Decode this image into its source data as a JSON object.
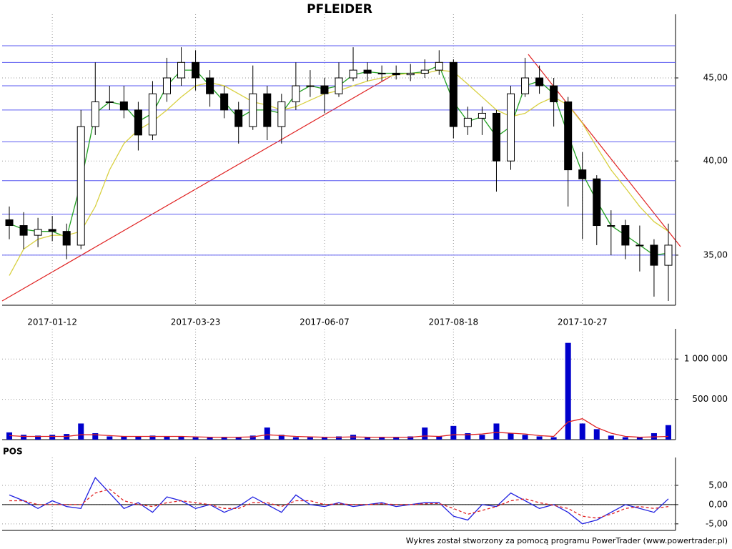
{
  "chart_data": [
    {
      "type": "candlestick",
      "title": "PFLEIDER",
      "categories": [
        null,
        null,
        null,
        "2017-01-12",
        null,
        null,
        null,
        null,
        null,
        null,
        null,
        null,
        null,
        "2017-03-23",
        null,
        null,
        null,
        null,
        null,
        null,
        null,
        null,
        "2017-06-07",
        null,
        null,
        null,
        null,
        null,
        null,
        null,
        null,
        "2017-08-18",
        null,
        null,
        null,
        null,
        null,
        null,
        null,
        null,
        "2017-10-27",
        null,
        null,
        null,
        null,
        null,
        null
      ],
      "open": [
        36.8,
        36.5,
        36,
        36.3,
        36.2,
        35.5,
        42,
        43.5,
        43.5,
        43,
        41.5,
        44,
        45,
        46,
        45,
        44,
        43,
        42,
        44,
        42,
        43.5,
        44.5,
        44.5,
        44,
        45,
        45.5,
        45.3,
        45.3,
        45.2,
        45.3,
        45.5,
        46,
        42,
        42.5,
        42.8,
        40,
        44,
        45,
        44.5,
        43.5,
        39.5,
        39,
        36.5,
        36.5,
        35.5,
        35.5,
        34.5
      ],
      "high": [
        37.5,
        37.2,
        36.9,
        37,
        36.6,
        43,
        46,
        44.5,
        44.5,
        43.5,
        44.8,
        46.3,
        47,
        46.8,
        45.5,
        44.5,
        43.5,
        45.8,
        44.5,
        44,
        46,
        45.5,
        45,
        46,
        47,
        46,
        45.8,
        45.8,
        45.9,
        46.2,
        46.8,
        46.2,
        43.2,
        43.2,
        43,
        44.5,
        46.3,
        45.8,
        45,
        43.8,
        40.5,
        39.2,
        37.3,
        36.8,
        36.5,
        35.8,
        36.6
      ],
      "low": [
        35.8,
        35.3,
        35.4,
        35.7,
        34.8,
        35.3,
        41.5,
        43,
        42.5,
        40.6,
        41.2,
        43.5,
        44.5,
        44.2,
        43.2,
        42.5,
        41,
        41.8,
        41.2,
        41,
        43,
        43.8,
        42.8,
        43.8,
        44.8,
        44.8,
        44.8,
        44.9,
        44.8,
        45,
        45.2,
        41.3,
        41.5,
        41.5,
        38.3,
        39.5,
        43.8,
        44,
        42,
        37.5,
        35.8,
        35.5,
        35,
        34.8,
        34.2,
        33,
        32.8
      ],
      "close": [
        36.5,
        36,
        36.3,
        36.2,
        35.5,
        42,
        43.5,
        43.5,
        43,
        41.5,
        44,
        45,
        46,
        45,
        44,
        43,
        42,
        44,
        42,
        43.5,
        44.5,
        44.5,
        44,
        45,
        45.5,
        45.3,
        45.3,
        45.2,
        45.3,
        45.5,
        46,
        42,
        42.5,
        42.8,
        40,
        44,
        45,
        44.5,
        43.5,
        39.5,
        39,
        36.5,
        36.5,
        35.5,
        35.5,
        34.5,
        35.5
      ],
      "series": [
        {
          "color": "#22a022",
          "values": [
            36.6,
            36.3,
            36.2,
            36.2,
            35.9,
            38.8,
            42.8,
            43.5,
            43.3,
            42.3,
            42.8,
            44.5,
            45.5,
            45.5,
            44.5,
            43.5,
            42.5,
            43,
            43,
            42.8,
            44,
            44.5,
            44.3,
            44.5,
            45.2,
            45.4,
            45.3,
            45.3,
            45.3,
            45.4,
            45.8,
            43.5,
            42.3,
            42.6,
            41.4,
            42,
            44.5,
            44.8,
            44,
            41.5,
            39.3,
            37.8,
            36.5,
            36,
            35.5,
            35,
            35.1
          ]
        },
        {
          "color": "#d8d040",
          "values": [
            34,
            35.3,
            35.8,
            36,
            36,
            36.2,
            37.5,
            39.5,
            41,
            41.8,
            42.3,
            43,
            43.8,
            44.5,
            44.7,
            44.5,
            44,
            43.5,
            43.3,
            43,
            43.2,
            43.6,
            44,
            44.2,
            44.5,
            44.8,
            45,
            45.2,
            45.3,
            45.3,
            45.5,
            45.4,
            44.6,
            43.8,
            43,
            42.6,
            42.8,
            43.4,
            43.8,
            43.3,
            42.2,
            40.8,
            39.5,
            38.5,
            37.5,
            36.7,
            36.2
          ]
        }
      ],
      "levels": {
        "color": "#5a5af0",
        "values": [
          47.1,
          46,
          44.5,
          43,
          41.1,
          38.9,
          37.1,
          35
        ]
      },
      "log_scale": true,
      "grid": true,
      "ylim": [
        32.6,
        49
      ],
      "yticks": [
        {
          "value": 35,
          "label": "35,00"
        },
        {
          "value": 40,
          "label": "40,00"
        },
        {
          "value": 45,
          "label": "45,00"
        }
      ]
    },
    {
      "type": "bar",
      "color": "#0000cc",
      "values": [
        90000,
        60000,
        50000,
        60000,
        70000,
        200000,
        80000,
        40000,
        40000,
        40000,
        50000,
        40000,
        40000,
        30000,
        30000,
        30000,
        30000,
        50000,
        150000,
        60000,
        30000,
        30000,
        30000,
        40000,
        60000,
        30000,
        30000,
        30000,
        40000,
        150000,
        40000,
        170000,
        80000,
        60000,
        200000,
        80000,
        60000,
        40000,
        30000,
        1200000,
        200000,
        130000,
        50000,
        30000,
        30000,
        80000,
        180000
      ],
      "series": [
        {
          "color": "#e02020",
          "values": [
            50000,
            40000,
            40000,
            40000,
            40000,
            60000,
            60000,
            50000,
            40000,
            40000,
            40000,
            40000,
            40000,
            35000,
            30000,
            30000,
            30000,
            35000,
            60000,
            50000,
            40000,
            35000,
            30000,
            30000,
            35000,
            30000,
            30000,
            30000,
            30000,
            45000,
            40000,
            60000,
            60000,
            70000,
            90000,
            80000,
            70000,
            50000,
            40000,
            220000,
            260000,
            150000,
            80000,
            40000,
            30000,
            35000,
            40000
          ]
        }
      ],
      "grid": true,
      "ylim": [
        0,
        1330000
      ],
      "yticks": [
        {
          "value": 500000,
          "label": "500 000"
        },
        {
          "value": 1000000,
          "label": "1 000 000"
        }
      ]
    },
    {
      "type": "line",
      "title": "POS",
      "series": [
        {
          "color": "#2020e0",
          "line_style": "solid",
          "values": [
            2.5,
            1,
            -1,
            1,
            -0.5,
            -1,
            7,
            3,
            -1,
            0.5,
            -2,
            2,
            1,
            -1,
            0,
            -2,
            -0.5,
            2,
            0,
            -2,
            2.5,
            0,
            -0.5,
            0.5,
            -0.5,
            0,
            0.5,
            -0.5,
            0,
            0.5,
            0.5,
            -3,
            -4,
            0,
            -0.5,
            3,
            1,
            -1,
            0,
            -2,
            -5,
            -4,
            -2,
            0,
            -1,
            -2,
            1.5
          ]
        },
        {
          "color": "#e02020",
          "line_style": "dashed",
          "values": [
            1,
            1,
            0,
            0,
            0,
            0,
            3,
            4,
            1,
            0,
            -0.5,
            0.5,
            1,
            0.5,
            0,
            -1,
            -1,
            0.5,
            0.5,
            -0.5,
            1,
            1,
            0,
            0.2,
            0,
            0,
            0.2,
            0,
            0,
            0.2,
            0.3,
            -1,
            -2.5,
            -1.5,
            -0.5,
            1,
            1.5,
            0.5,
            -0.2,
            -1,
            -3,
            -3.5,
            -2.5,
            -1,
            -0.5,
            -1,
            -0.5
          ]
        }
      ],
      "zero_line": true,
      "grid": true,
      "ylim": [
        -6.7,
        11.3
      ],
      "yticks": [
        {
          "value": -5,
          "label": "-5,00"
        },
        {
          "value": 0,
          "label": "0,00"
        },
        {
          "value": 5,
          "label": "5,00"
        }
      ]
    }
  ],
  "footer": "Wykres został stworzony za pomocą programu PowerTrader (www.powertrader.pl)"
}
